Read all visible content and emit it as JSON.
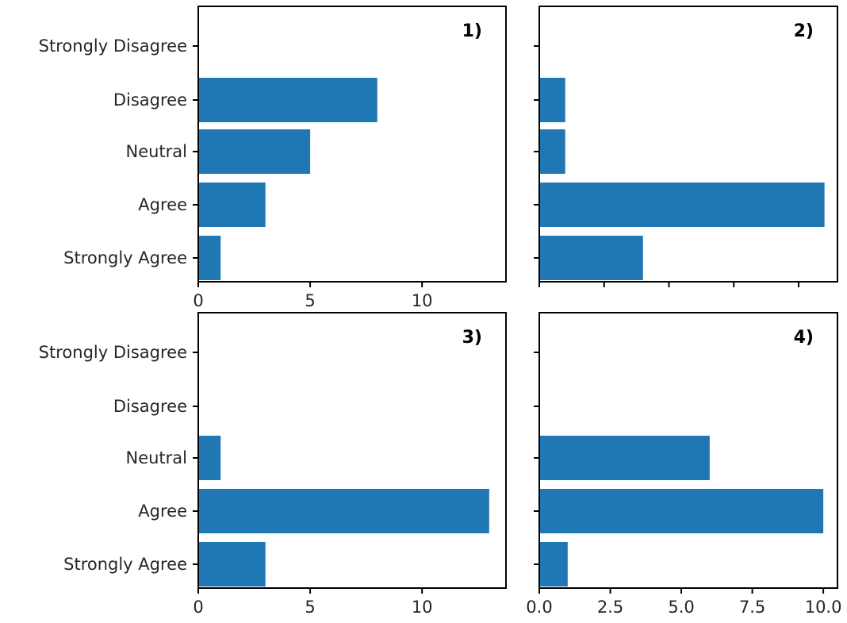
{
  "chart_data": [
    {
      "type": "bar",
      "orientation": "horizontal",
      "panel_label": "1)",
      "categories": [
        "Strongly Disagree",
        "Disagree",
        "Neutral",
        "Agree",
        "Strongly Agree"
      ],
      "values": [
        0,
        8,
        5,
        3,
        1
      ],
      "xticks": [
        "0",
        "5",
        "10"
      ],
      "xtick_values": [
        0,
        5,
        10
      ],
      "xlim": [
        0,
        13.75
      ],
      "bar_color": "#1f77b4"
    },
    {
      "type": "bar",
      "orientation": "horizontal",
      "panel_label": "2)",
      "categories": [
        "Strongly Disagree",
        "Disagree",
        "Neutral",
        "Agree",
        "Strongly Agree"
      ],
      "values": [
        0,
        1,
        1,
        11,
        4
      ],
      "xticks": [],
      "xtick_values": [
        0,
        2.5,
        5,
        7.5,
        10
      ],
      "xlim": [
        0,
        11.5
      ],
      "bar_color": "#1f77b4"
    },
    {
      "type": "bar",
      "orientation": "horizontal",
      "panel_label": "3)",
      "categories": [
        "Strongly Disagree",
        "Disagree",
        "Neutral",
        "Agree",
        "Strongly Agree"
      ],
      "values": [
        0,
        0,
        1,
        13,
        3
      ],
      "xticks": [
        "0",
        "5",
        "10"
      ],
      "xtick_values": [
        0,
        5,
        10
      ],
      "xlim": [
        0,
        13.75
      ],
      "bar_color": "#1f77b4"
    },
    {
      "type": "bar",
      "orientation": "horizontal",
      "panel_label": "4)",
      "categories": [
        "Strongly Disagree",
        "Disagree",
        "Neutral",
        "Agree",
        "Strongly Agree"
      ],
      "values": [
        0,
        0,
        6,
        10,
        1
      ],
      "xticks": [
        "0.0",
        "2.5",
        "5.0",
        "7.5",
        "10.0"
      ],
      "xtick_values": [
        0,
        2.5,
        5,
        7.5,
        10
      ],
      "xlim": [
        0,
        10.5
      ],
      "bar_color": "#1f77b4"
    }
  ]
}
